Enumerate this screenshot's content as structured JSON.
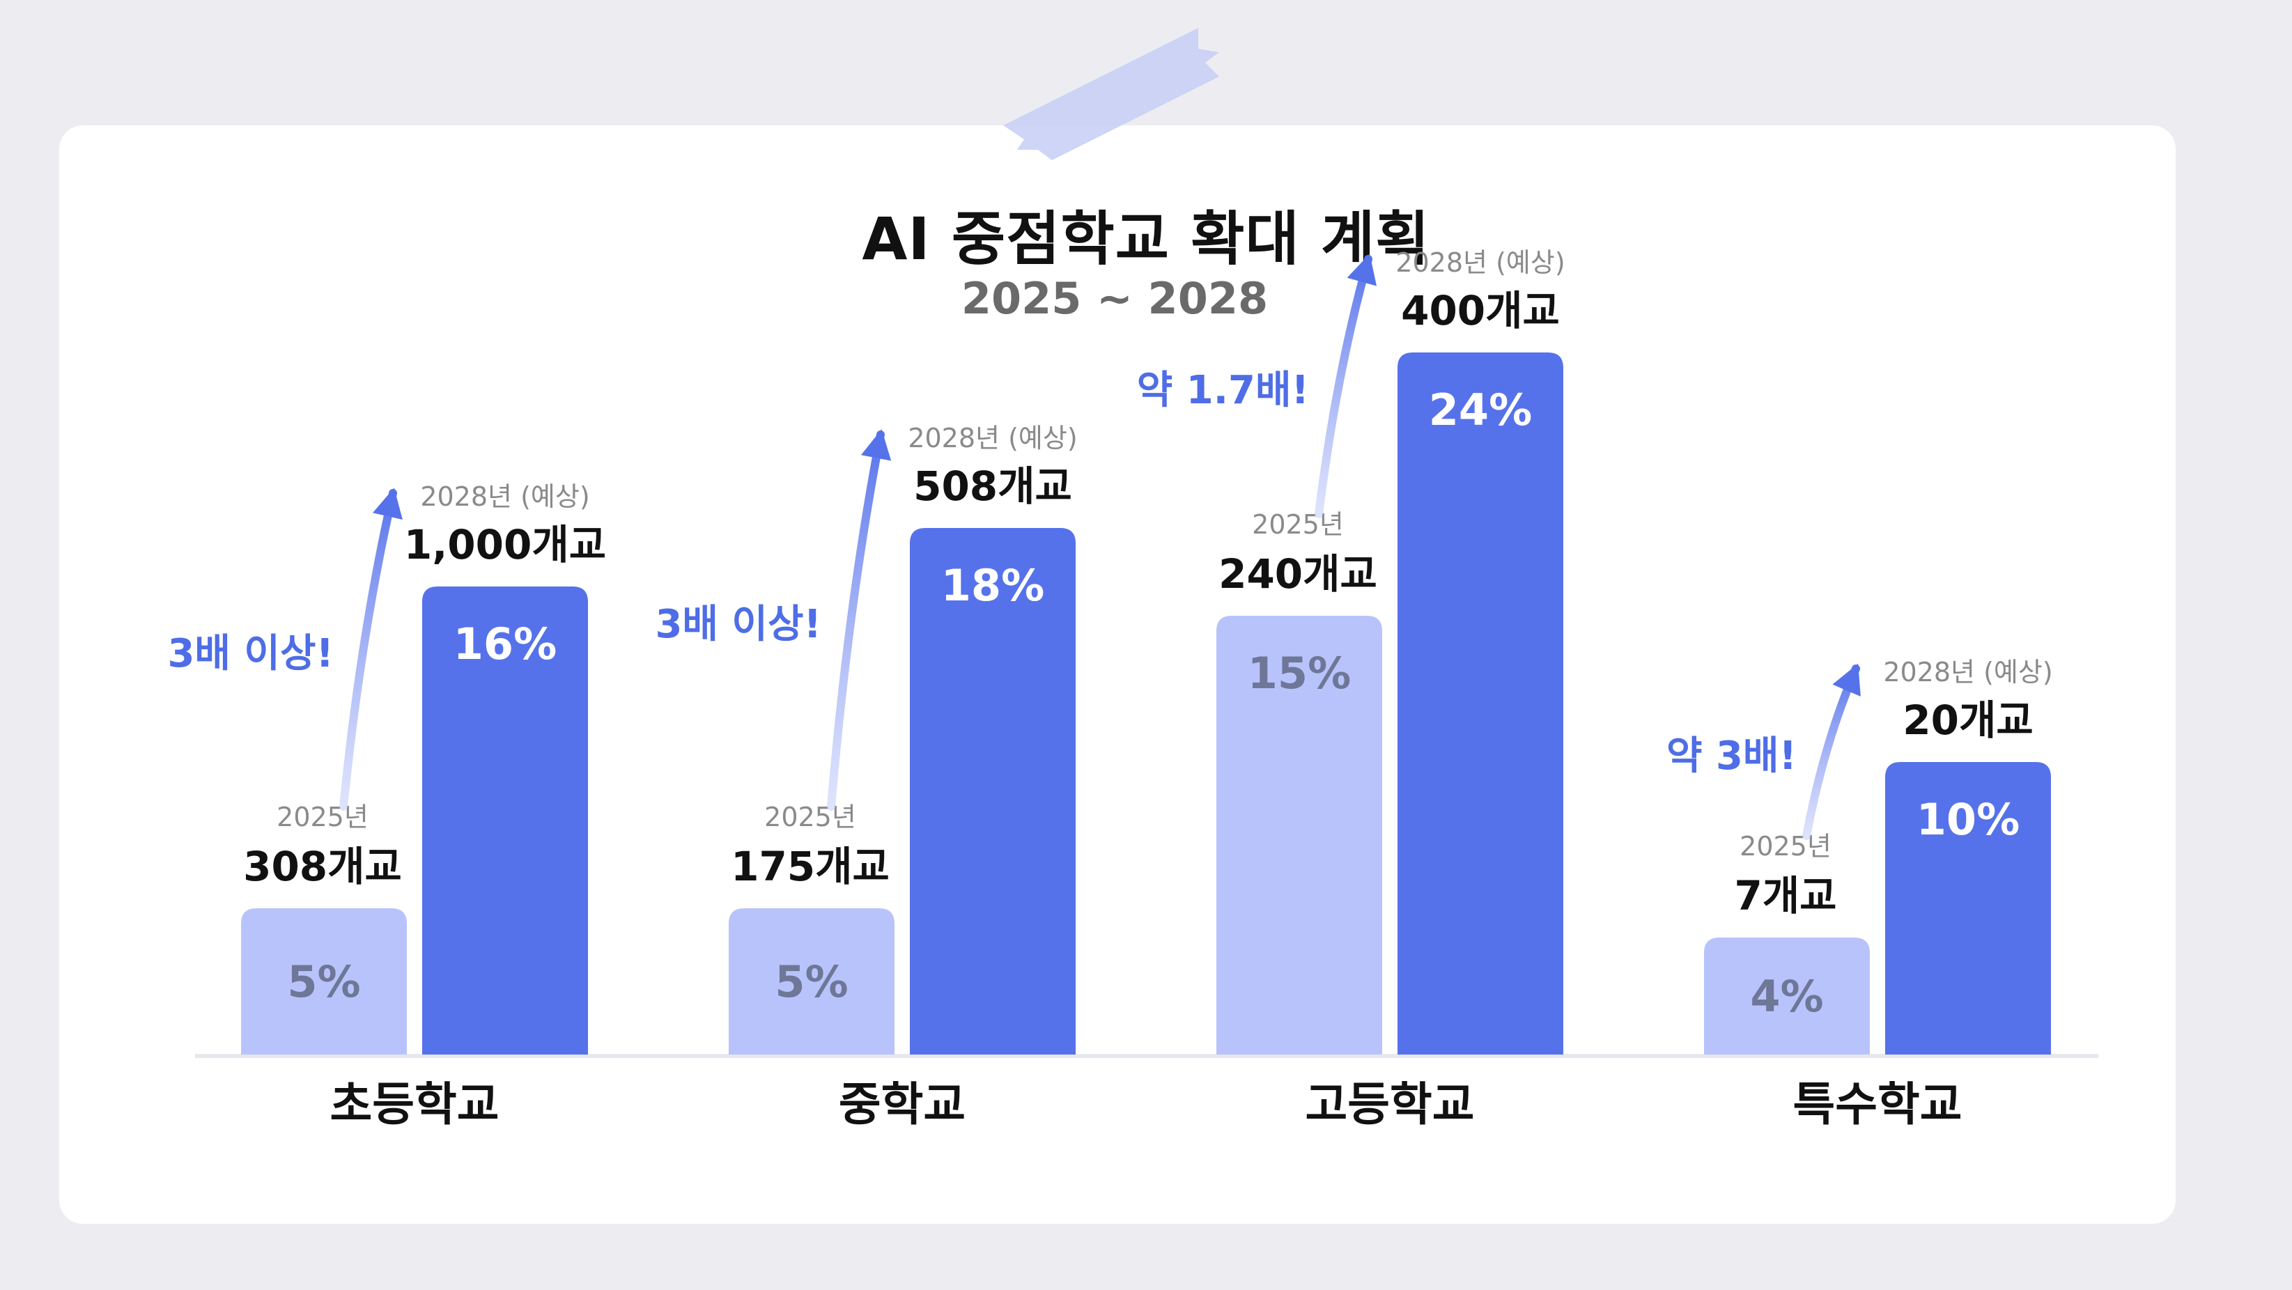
{
  "title": "AI 중점학교 확대 계획",
  "subtitle": "2025 ~ 2028",
  "colors": {
    "bar2025": "#b9c3fb",
    "bar2028": "#5672ea",
    "accent": "#4e6de6",
    "axis": "#e7e8ee",
    "tape": "#c5cef6"
  },
  "chart_data": {
    "type": "bar",
    "title": "AI 중점학교 확대 계획",
    "subtitle": "2025 ~ 2028",
    "categories": [
      "초등학교",
      "중학교",
      "고등학교",
      "특수학교"
    ],
    "ylim": [
      0,
      28
    ],
    "grid": false,
    "series": [
      {
        "name": "2025년",
        "values": [
          5,
          5,
          15,
          4
        ],
        "labels": [
          "5%",
          "5%",
          "15%",
          "4%"
        ],
        "counts": [
          "308개교",
          "175개교",
          "240개교",
          "7개교"
        ]
      },
      {
        "name": "2028년 (예상)",
        "values": [
          16,
          18,
          24,
          10
        ],
        "labels": [
          "16%",
          "18%",
          "24%",
          "10%"
        ],
        "counts": [
          "1,000개교",
          "508개교",
          "400개교",
          "20개교"
        ]
      }
    ],
    "annotations": [
      "3배 이상!",
      "3배 이상!",
      "약 1.7배!",
      "약 3배!"
    ]
  }
}
